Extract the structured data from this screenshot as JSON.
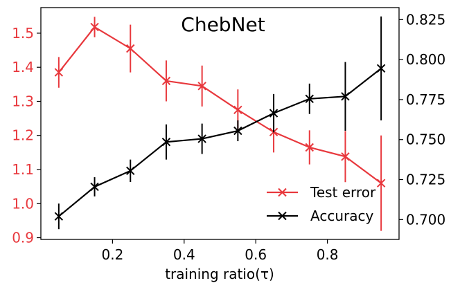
{
  "chart_data": {
    "type": "line",
    "title": "ChebNet",
    "xlabel": "training ratio(τ)",
    "ylabel_left": "",
    "ylabel_right": "",
    "xlim": [
      0.0,
      1.0
    ],
    "ylim_left": [
      0.895,
      1.575
    ],
    "ylim_right": [
      0.6876,
      0.8325
    ],
    "x_ticks": [
      {
        "value": 0.2,
        "label": "0.2"
      },
      {
        "value": 0.4,
        "label": "0.4"
      },
      {
        "value": 0.6,
        "label": "0.6"
      },
      {
        "value": 0.8,
        "label": "0.8"
      }
    ],
    "y_left_ticks": [
      {
        "value": 0.9,
        "label": "0.9"
      },
      {
        "value": 1.0,
        "label": "1.0"
      },
      {
        "value": 1.1,
        "label": "1.1"
      },
      {
        "value": 1.2,
        "label": "1.2"
      },
      {
        "value": 1.3,
        "label": "1.3"
      },
      {
        "value": 1.4,
        "label": "1.4"
      },
      {
        "value": 1.5,
        "label": "1.5"
      }
    ],
    "y_right_ticks": [
      {
        "value": 0.7,
        "label": "0.700"
      },
      {
        "value": 0.725,
        "label": "0.725"
      },
      {
        "value": 0.75,
        "label": "0.750"
      },
      {
        "value": 0.775,
        "label": "0.775"
      },
      {
        "value": 0.8,
        "label": "0.800"
      },
      {
        "value": 0.825,
        "label": "0.825"
      }
    ],
    "x": [
      0.05,
      0.15,
      0.25,
      0.35,
      0.45,
      0.55,
      0.65,
      0.75,
      0.85,
      0.95
    ],
    "series": [
      {
        "name": "Test error",
        "axis": "left",
        "color": "#e8383d",
        "marker": "x",
        "values": [
          1.385,
          1.518,
          1.455,
          1.36,
          1.345,
          1.275,
          1.21,
          1.165,
          1.138,
          1.06
        ],
        "errors": [
          0.045,
          0.03,
          0.07,
          0.06,
          0.06,
          0.06,
          0.06,
          0.05,
          0.075,
          0.14
        ]
      },
      {
        "name": "Accuracy",
        "axis": "right",
        "color": "#000000",
        "marker": "x",
        "values": [
          0.702,
          0.7205,
          0.7305,
          0.7485,
          0.7505,
          0.7555,
          0.7665,
          0.7755,
          0.777,
          0.7945
        ],
        "errors": [
          0.008,
          0.006,
          0.007,
          0.011,
          0.0095,
          0.0065,
          0.012,
          0.0095,
          0.0215,
          0.0325
        ]
      }
    ],
    "legend": {
      "position": "lower-right"
    }
  }
}
